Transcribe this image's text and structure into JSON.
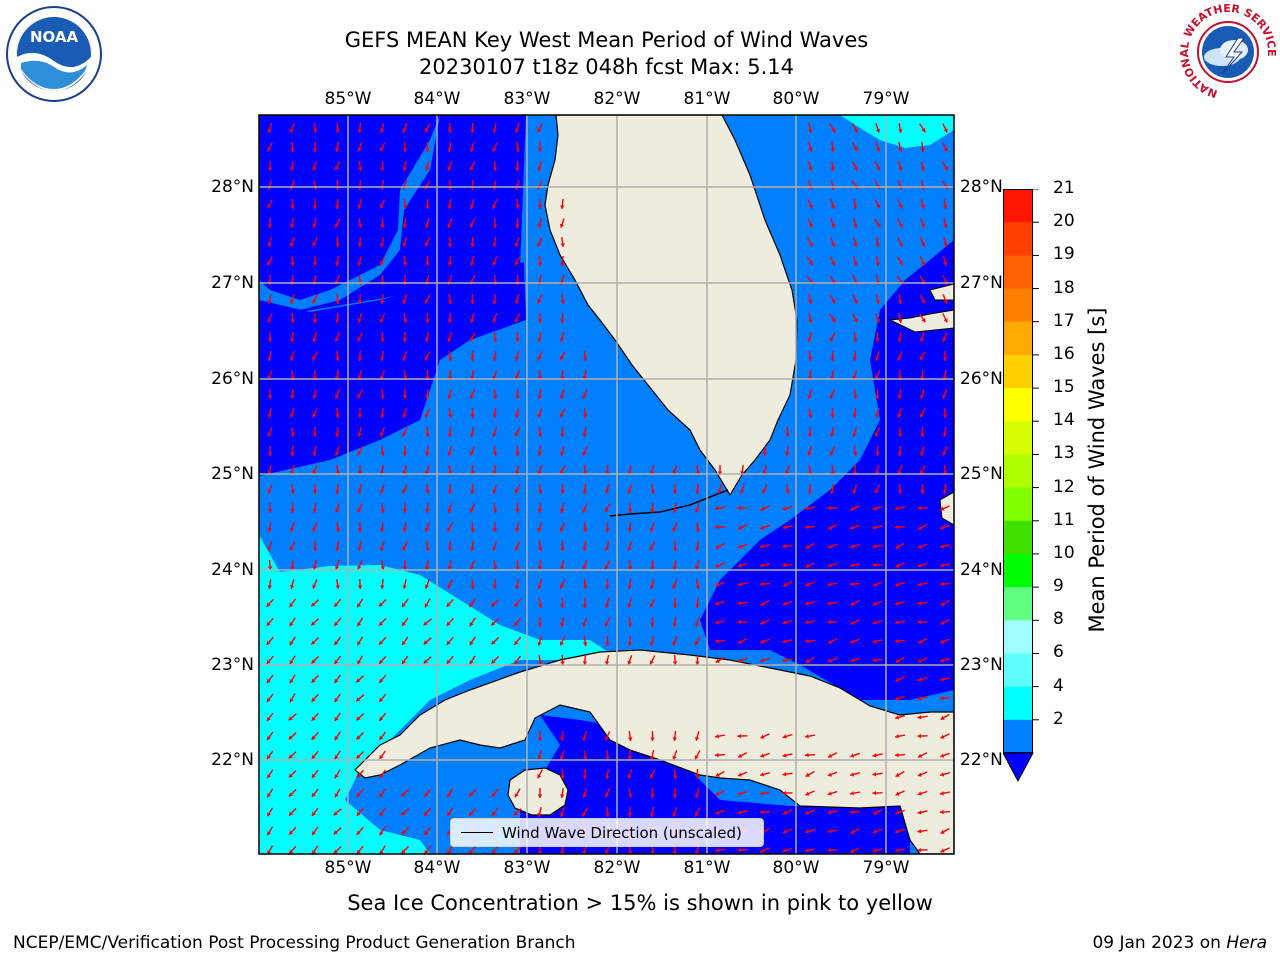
{
  "title": {
    "line1": "GEFS MEAN Key West Mean Period of Wind Waves",
    "line2": "20230107 t18z 048h fcst   Max: 5.14"
  },
  "map": {
    "lon_labels": [
      "85°W",
      "84°W",
      "83°W",
      "82°W",
      "81°W",
      "80°W",
      "79°W"
    ],
    "lat_labels": [
      "28°N",
      "27°N",
      "26°N",
      "25°N",
      "24°N",
      "23°N",
      "22°N"
    ],
    "arrow_color": "#ff0000",
    "land_color": "#eeecdd",
    "shading_colors": {
      "2-4": "#0080ff",
      "4-6": "#00ffff",
      "below-2": "#0000ff"
    }
  },
  "legend": {
    "label": "Wind Wave Direction (unscaled)"
  },
  "colorbar": {
    "label": "Mean Period of Wind Waves [s]",
    "ticks": [
      "21",
      "20",
      "19",
      "18",
      "17",
      "16",
      "15",
      "14",
      "13",
      "12",
      "11",
      "10",
      "9",
      "8",
      "6",
      "4",
      "2"
    ],
    "colors": [
      "#ff1500",
      "#ff4000",
      "#ff6000",
      "#ff8000",
      "#ffaa00",
      "#ffd000",
      "#ffff00",
      "#d8ff00",
      "#b0ff00",
      "#80ff00",
      "#40e000",
      "#00ff00",
      "#60ff80",
      "#a0ffff",
      "#60ffff",
      "#00ffff",
      "#0080ff"
    ],
    "under_color": "#0000ff"
  },
  "notes": {
    "sea_ice": "Sea Ice Concentration > 15% is shown in pink to yellow"
  },
  "footer": {
    "left": "NCEP/EMC/Verification Post Processing Product Generation Branch",
    "date": "09 Jan 2023 on ",
    "machine": "Hera"
  },
  "logos": {
    "noaa_text": "NOAA",
    "nws_text": "NATIONAL WEATHER SERVICE"
  }
}
